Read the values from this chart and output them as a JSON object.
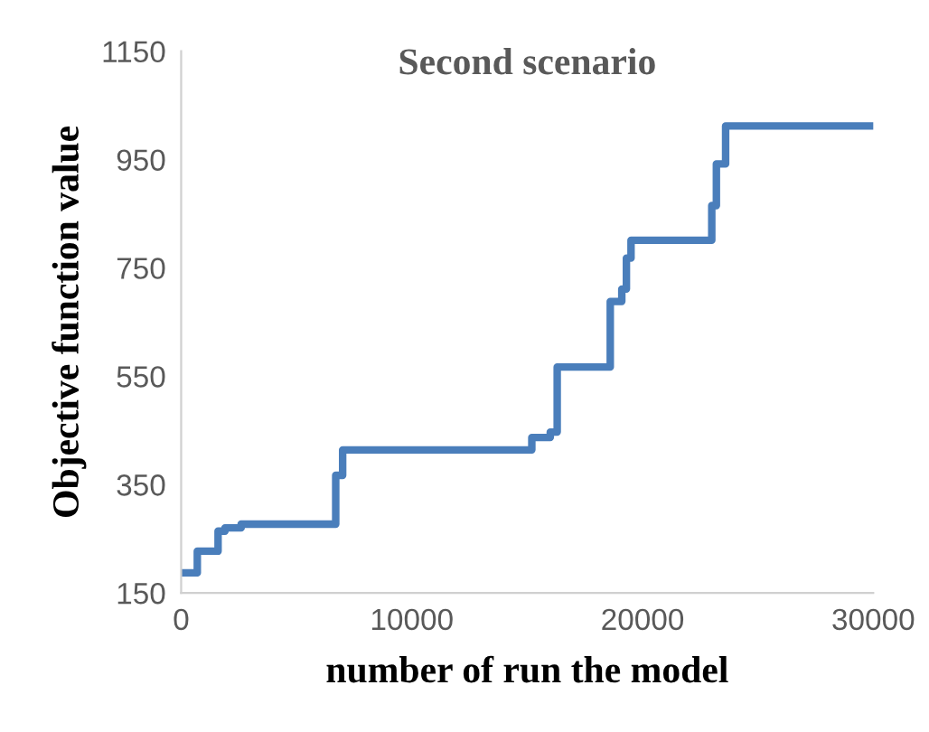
{
  "chart_data": {
    "type": "step",
    "title": "Second scenario",
    "xlabel": "number of run the model",
    "ylabel": "Objective function value",
    "x": [
      0,
      700,
      1600,
      1900,
      2600,
      6700,
      7000,
      15200,
      16000,
      16300,
      18600,
      19100,
      19300,
      19500,
      23000,
      23200,
      23600,
      30000
    ],
    "series": [
      {
        "color": "#4a7ebb",
        "values": [
          187,
          227,
          264,
          270,
          277,
          367,
          414,
          437,
          447,
          567,
          688,
          711,
          768,
          801,
          865,
          942,
          1012,
          1012
        ]
      }
    ],
    "xlim": [
      0,
      30000
    ],
    "xticks": [
      0,
      10000,
      20000,
      30000
    ],
    "ylim": [
      150,
      1150
    ],
    "yticks": [
      150,
      350,
      550,
      750,
      950,
      1150
    ],
    "grid": false,
    "legend": false
  }
}
